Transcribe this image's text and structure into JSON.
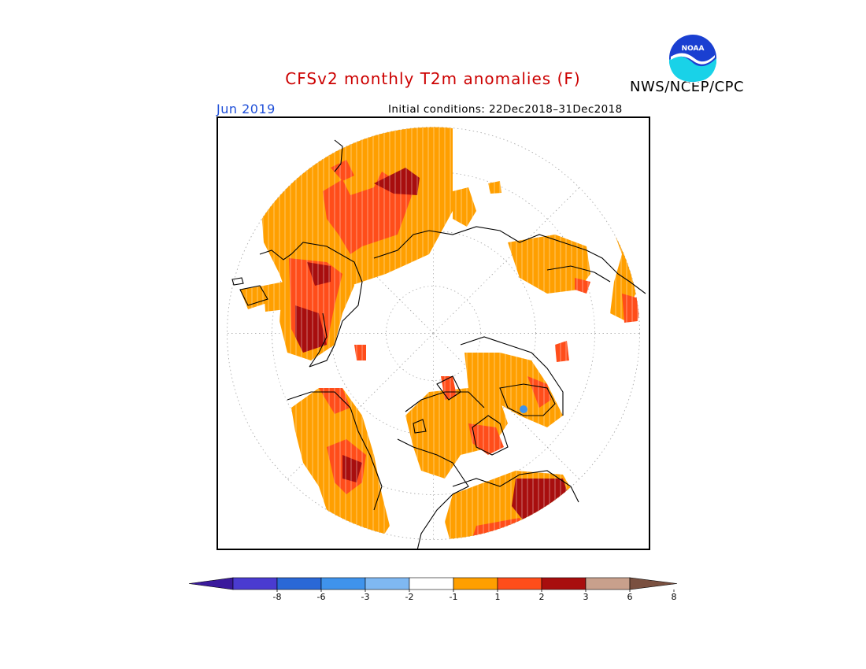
{
  "title": "CFSv2 monthly T2m anomalies (F)",
  "organization": "NWS/NCEP/CPC",
  "logo_text": "NOAA",
  "month": "Jun 2019",
  "initial_conditions": "Initial conditions: 22Dec2018–31Dec2018",
  "colors": {
    "title": "#cc0000",
    "month": "#1f4fd8",
    "coast": "#000000",
    "graticule": "#888888"
  },
  "colorbar": {
    "bins": [
      {
        "label": "-8",
        "color": "#3a1a9c"
      },
      {
        "label": "-6",
        "color": "#4a3bd0"
      },
      {
        "label": "-3",
        "color": "#2a68d6"
      },
      {
        "label": "-2",
        "color": "#3f93ec"
      },
      {
        "label": "-1",
        "color": "#7fb8f2"
      },
      {
        "label": "1",
        "color": "#ffffff"
      },
      {
        "label": "2",
        "color": "#ff9f00"
      },
      {
        "label": "3",
        "color": "#ff4d1a"
      },
      {
        "label": "6",
        "color": "#a80e0e"
      },
      {
        "label": "8",
        "color": "#c8a08c"
      },
      {
        "label": "",
        "color": "#7a5040"
      }
    ]
  },
  "map": {
    "projection": "north polar stereographic",
    "anomaly_palette": {
      "weak": "#ff9f00",
      "moderate": "#ff4d1a",
      "strong": "#a80e0e",
      "cool": "#3f93ec"
    }
  }
}
